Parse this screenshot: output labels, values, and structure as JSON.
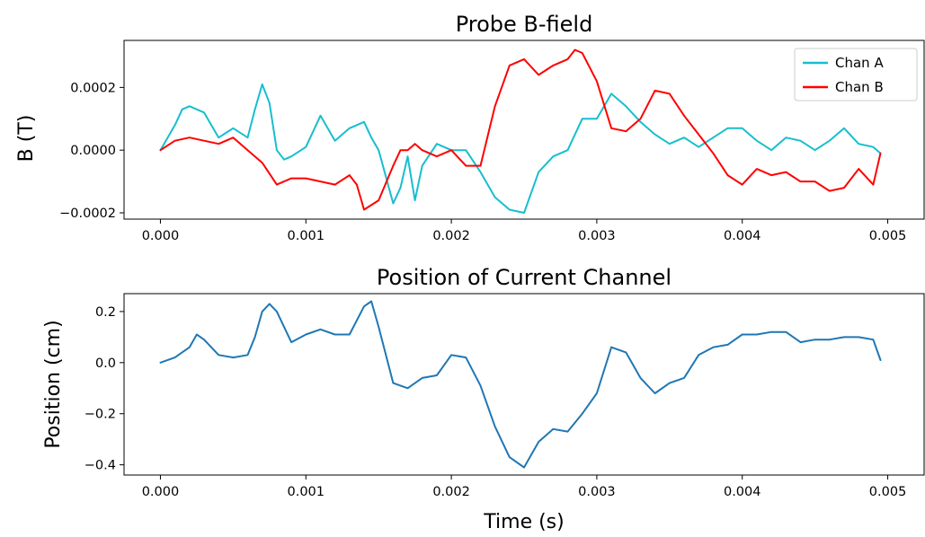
{
  "chart_data": [
    {
      "type": "line",
      "title": "Probe B-field",
      "xlabel": "",
      "ylabel": "B (T)",
      "xlim": [
        -0.00025,
        0.00525
      ],
      "ylim": [
        -0.00022,
        0.00035
      ],
      "xticks": [
        0.0,
        0.001,
        0.002,
        0.003,
        0.004,
        0.005
      ],
      "xtick_labels": [
        "0.000",
        "0.001",
        "0.002",
        "0.003",
        "0.004",
        "0.005"
      ],
      "yticks": [
        -0.0002,
        0.0,
        0.0002
      ],
      "ytick_labels": [
        "−0.0002",
        "0.0000",
        "0.0002"
      ],
      "grid": false,
      "legend": "top-right",
      "series": [
        {
          "name": "Chan A",
          "color": "#17becf",
          "x": [
            0.0,
            0.0001,
            0.00015,
            0.0002,
            0.0003,
            0.0004,
            0.0005,
            0.0006,
            0.00065,
            0.0007,
            0.00075,
            0.0008,
            0.00085,
            0.0009,
            0.001,
            0.0011,
            0.0012,
            0.0013,
            0.0014,
            0.00145,
            0.0015,
            0.0016,
            0.00165,
            0.0017,
            0.00175,
            0.0018,
            0.0019,
            0.002,
            0.0021,
            0.0022,
            0.0023,
            0.0024,
            0.0025,
            0.0026,
            0.0027,
            0.0028,
            0.0029,
            0.003,
            0.0031,
            0.0032,
            0.0033,
            0.0034,
            0.0035,
            0.0036,
            0.0037,
            0.0038,
            0.0039,
            0.004,
            0.0041,
            0.0042,
            0.0043,
            0.0044,
            0.0045,
            0.0046,
            0.0047,
            0.0048,
            0.0049,
            0.00495
          ],
          "y": [
            0.0,
            8e-05,
            0.00013,
            0.00014,
            0.00012,
            4e-05,
            7e-05,
            4e-05,
            0.00013,
            0.00021,
            0.00015,
            0.0,
            -3e-05,
            -2e-05,
            1e-05,
            0.00011,
            3e-05,
            7e-05,
            9e-05,
            4e-05,
            0.0,
            -0.00017,
            -0.00012,
            -2e-05,
            -0.00016,
            -5e-05,
            2e-05,
            0.0,
            0.0,
            -7e-05,
            -0.00015,
            -0.00019,
            -0.0002,
            -7e-05,
            -2e-05,
            0.0,
            0.0001,
            0.0001,
            0.00018,
            0.00014,
            9e-05,
            5e-05,
            2e-05,
            4e-05,
            1e-05,
            4e-05,
            7e-05,
            7e-05,
            3e-05,
            0.0,
            4e-05,
            3e-05,
            0.0,
            3e-05,
            7e-05,
            2e-05,
            1e-05,
            -1e-05
          ]
        },
        {
          "name": "Chan B",
          "color": "#ff0000",
          "x": [
            0.0,
            0.0001,
            0.0002,
            0.0003,
            0.0004,
            0.0005,
            0.0006,
            0.0007,
            0.0008,
            0.0009,
            0.001,
            0.0011,
            0.0012,
            0.0013,
            0.00135,
            0.0014,
            0.0015,
            0.0016,
            0.00165,
            0.0017,
            0.00175,
            0.0018,
            0.0019,
            0.002,
            0.0021,
            0.0022,
            0.0023,
            0.0024,
            0.0025,
            0.0026,
            0.0027,
            0.0028,
            0.00285,
            0.0029,
            0.003,
            0.0031,
            0.0032,
            0.0033,
            0.0034,
            0.0035,
            0.0036,
            0.0037,
            0.0038,
            0.0039,
            0.004,
            0.0041,
            0.0042,
            0.0043,
            0.0044,
            0.0045,
            0.0046,
            0.0047,
            0.0048,
            0.0049,
            0.00495
          ],
          "y": [
            0.0,
            3e-05,
            4e-05,
            3e-05,
            2e-05,
            4e-05,
            0.0,
            -4e-05,
            -0.00011,
            -9e-05,
            -9e-05,
            -0.0001,
            -0.00011,
            -8e-05,
            -0.00011,
            -0.00019,
            -0.00016,
            -5e-05,
            0.0,
            0.0,
            2e-05,
            0.0,
            -2e-05,
            0.0,
            -5e-05,
            -5e-05,
            0.00014,
            0.00027,
            0.00029,
            0.00024,
            0.00027,
            0.00029,
            0.00032,
            0.00031,
            0.00022,
            7e-05,
            6e-05,
            0.0001,
            0.00019,
            0.00018,
            0.00011,
            5e-05,
            -1e-05,
            -8e-05,
            -0.00011,
            -6e-05,
            -8e-05,
            -7e-05,
            -0.0001,
            -0.0001,
            -0.00013,
            -0.00012,
            -6e-05,
            -0.00011,
            -1e-05
          ]
        }
      ]
    },
    {
      "type": "line",
      "title": "Position of Current Channel",
      "xlabel": "Time (s)",
      "ylabel": "Position (cm)",
      "xlim": [
        -0.00025,
        0.00525
      ],
      "ylim": [
        -0.44,
        0.27
      ],
      "xticks": [
        0.0,
        0.001,
        0.002,
        0.003,
        0.004,
        0.005
      ],
      "xtick_labels": [
        "0.000",
        "0.001",
        "0.002",
        "0.003",
        "0.004",
        "0.005"
      ],
      "yticks": [
        -0.4,
        -0.2,
        0.0,
        0.2
      ],
      "ytick_labels": [
        "−0.4",
        "−0.2",
        "0.0",
        "0.2"
      ],
      "grid": false,
      "series": [
        {
          "color": "#1f77b4",
          "x": [
            0.0,
            0.0001,
            0.0002,
            0.00025,
            0.0003,
            0.0004,
            0.0005,
            0.0006,
            0.00065,
            0.0007,
            0.00075,
            0.0008,
            0.0009,
            0.001,
            0.0011,
            0.0012,
            0.0013,
            0.0014,
            0.00145,
            0.0015,
            0.0016,
            0.0017,
            0.0018,
            0.0019,
            0.002,
            0.0021,
            0.0022,
            0.0023,
            0.0024,
            0.0025,
            0.0026,
            0.0027,
            0.0028,
            0.0029,
            0.003,
            0.0031,
            0.0032,
            0.0033,
            0.0034,
            0.0035,
            0.0036,
            0.0037,
            0.0038,
            0.0039,
            0.004,
            0.0041,
            0.0042,
            0.0043,
            0.0044,
            0.0045,
            0.0046,
            0.0047,
            0.0048,
            0.0049,
            0.00495
          ],
          "y": [
            0.0,
            0.02,
            0.06,
            0.11,
            0.09,
            0.03,
            0.02,
            0.03,
            0.1,
            0.2,
            0.23,
            0.2,
            0.08,
            0.11,
            0.13,
            0.11,
            0.11,
            0.22,
            0.24,
            0.14,
            -0.08,
            -0.1,
            -0.06,
            -0.05,
            0.03,
            0.02,
            -0.09,
            -0.25,
            -0.37,
            -0.41,
            -0.31,
            -0.26,
            -0.27,
            -0.2,
            -0.12,
            0.06,
            0.04,
            -0.06,
            -0.12,
            -0.08,
            -0.06,
            0.03,
            0.06,
            0.07,
            0.11,
            0.11,
            0.12,
            0.12,
            0.08,
            0.09,
            0.09,
            0.1,
            0.1,
            0.09,
            0.01
          ]
        }
      ]
    }
  ]
}
